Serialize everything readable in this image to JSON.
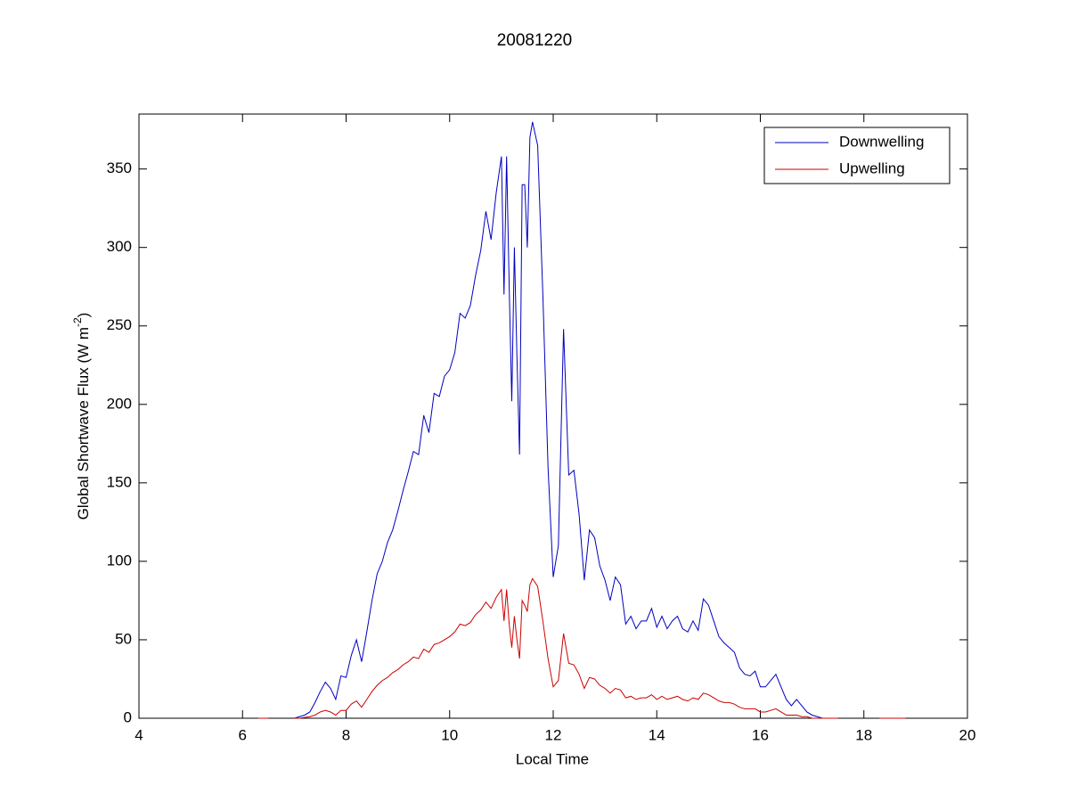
{
  "chart_data": {
    "type": "line",
    "title": "20081220",
    "xlabel": "Local Time",
    "ylabel": [
      "Global Shortwave Flux (W m",
      "-2",
      ")"
    ],
    "xlim": [
      4,
      20
    ],
    "xticks": [
      4,
      6,
      8,
      10,
      12,
      14,
      16,
      18,
      20
    ],
    "ylim": [
      0,
      385
    ],
    "yticks": [
      0,
      50,
      100,
      150,
      200,
      250,
      300,
      350
    ],
    "legend": "upper right",
    "grid": false,
    "x": [
      6.3,
      6.5,
      6.6,
      7.0,
      7.1,
      7.2,
      7.3,
      7.4,
      7.5,
      7.6,
      7.7,
      7.8,
      7.9,
      8.0,
      8.1,
      8.2,
      8.3,
      8.4,
      8.5,
      8.6,
      8.7,
      8.8,
      8.9,
      9.0,
      9.1,
      9.2,
      9.3,
      9.4,
      9.5,
      9.6,
      9.7,
      9.8,
      9.9,
      10.0,
      10.1,
      10.2,
      10.3,
      10.4,
      10.5,
      10.6,
      10.7,
      10.8,
      10.9,
      11.0,
      11.05,
      11.1,
      11.15,
      11.2,
      11.25,
      11.3,
      11.35,
      11.4,
      11.45,
      11.5,
      11.55,
      11.6,
      11.7,
      11.8,
      11.9,
      12.0,
      12.1,
      12.2,
      12.3,
      12.4,
      12.5,
      12.6,
      12.7,
      12.8,
      12.9,
      13.0,
      13.1,
      13.2,
      13.3,
      13.4,
      13.5,
      13.6,
      13.7,
      13.8,
      13.9,
      14.0,
      14.1,
      14.2,
      14.3,
      14.4,
      14.5,
      14.6,
      14.7,
      14.8,
      14.9,
      15.0,
      15.1,
      15.2,
      15.3,
      15.4,
      15.5,
      15.6,
      15.7,
      15.8,
      15.9,
      16.0,
      16.1,
      16.2,
      16.3,
      16.4,
      16.5,
      16.6,
      16.7,
      16.8,
      16.9,
      17.0,
      17.1,
      17.2,
      17.5,
      18.0,
      18.3,
      18.8
    ],
    "series": [
      {
        "name": "Downwelling",
        "color": "#0000bf",
        "values": [
          null,
          null,
          null,
          0,
          1,
          2,
          4,
          10,
          17,
          23,
          19,
          12,
          27,
          26,
          40,
          50,
          36,
          55,
          75,
          92,
          100,
          112,
          120,
          132,
          145,
          157,
          170,
          168,
          193,
          182,
          207,
          205,
          218,
          222,
          233,
          258,
          255,
          263,
          282,
          298,
          323,
          305,
          335,
          358,
          270,
          358,
          275,
          202,
          300,
          230,
          168,
          340,
          340,
          300,
          370,
          380,
          365,
          270,
          160,
          90,
          110,
          248,
          155,
          158,
          130,
          88,
          120,
          115,
          97,
          88,
          75,
          90,
          85,
          60,
          65,
          57,
          62,
          62,
          70,
          58,
          65,
          57,
          62,
          65,
          57,
          55,
          62,
          56,
          76,
          72,
          62,
          52,
          48,
          45,
          42,
          32,
          28,
          27,
          30,
          20,
          20,
          24,
          28,
          20,
          12,
          8,
          12,
          8,
          4,
          2,
          1,
          0,
          0,
          null,
          0,
          0
        ]
      },
      {
        "name": "Upwelling",
        "color": "#cc0000",
        "values": [
          0,
          0,
          null,
          0,
          0,
          0.5,
          1,
          2,
          4,
          5,
          4,
          2,
          5,
          5,
          9,
          11,
          7,
          12,
          17,
          21,
          24,
          26,
          29,
          31,
          34,
          36,
          39,
          38,
          44,
          42,
          47,
          48,
          50,
          52,
          55,
          60,
          59,
          61,
          66,
          69,
          74,
          70,
          77,
          82,
          62,
          82,
          60,
          45,
          65,
          50,
          38,
          75,
          72,
          68,
          85,
          89,
          84,
          62,
          38,
          20,
          24,
          54,
          35,
          34,
          28,
          19,
          26,
          25,
          21,
          19,
          16,
          19,
          18,
          13,
          14,
          12,
          13,
          13,
          15,
          12,
          14,
          12,
          13,
          14,
          12,
          11,
          13,
          12,
          16,
          15,
          13,
          11,
          10,
          10,
          9,
          7,
          6,
          6,
          6,
          4,
          4,
          5,
          6,
          4,
          2,
          2,
          2,
          1,
          1,
          0,
          0,
          0,
          0,
          null,
          0,
          0
        ]
      }
    ]
  }
}
